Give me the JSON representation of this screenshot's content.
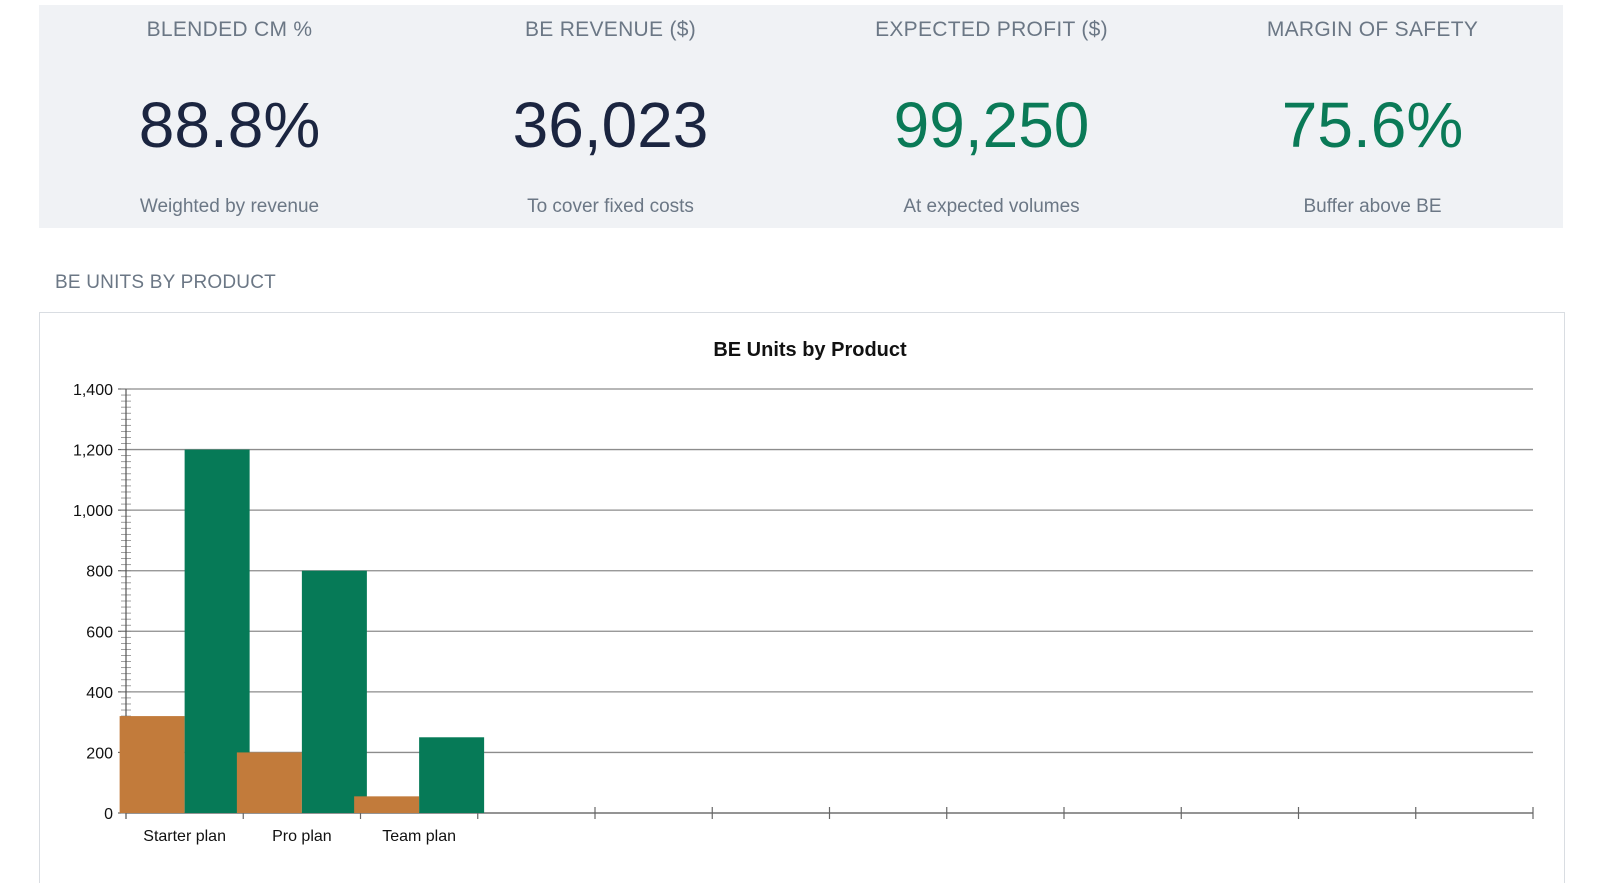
{
  "kpis": [
    {
      "label": "BLENDED CM %",
      "value": "88.8%",
      "sub": "Weighted by revenue",
      "value_color": "#1b2540"
    },
    {
      "label": "BE REVENUE ($)",
      "value": "36,023",
      "sub": "To cover fixed costs",
      "value_color": "#1b2540"
    },
    {
      "label": "EXPECTED PROFIT ($)",
      "value": "99,250",
      "sub": "At expected volumes",
      "value_color": "#0a7a57"
    },
    {
      "label": "MARGIN OF SAFETY",
      "value": "75.6%",
      "sub": "Buffer above BE",
      "value_color": "#0a7a57"
    }
  ],
  "section": {
    "title": "BE UNITS BY PRODUCT"
  },
  "colors": {
    "series1": "#c27b3b",
    "series2": "#067a57",
    "grid": "#8c8c8c"
  },
  "chart_data": {
    "type": "bar",
    "title": "BE Units by Product",
    "xlabel": "",
    "ylabel": "",
    "categories": [
      "Starter plan",
      "Pro plan",
      "Team plan",
      "",
      "",
      "",
      "",
      "",
      "",
      "",
      "",
      ""
    ],
    "series": [
      {
        "values": [
          320,
          200,
          55,
          0,
          0,
          0,
          0,
          0,
          0,
          0,
          0,
          0
        ]
      },
      {
        "values": [
          1200,
          800,
          250,
          0,
          0,
          0,
          0,
          0,
          0,
          0,
          0,
          0
        ]
      }
    ],
    "ylim": [
      0,
      1400
    ],
    "yticks": [
      "0",
      "200",
      "400",
      "600",
      "800",
      "1,000",
      "1,200",
      "1,400"
    ],
    "grid": true,
    "legend": "none"
  }
}
